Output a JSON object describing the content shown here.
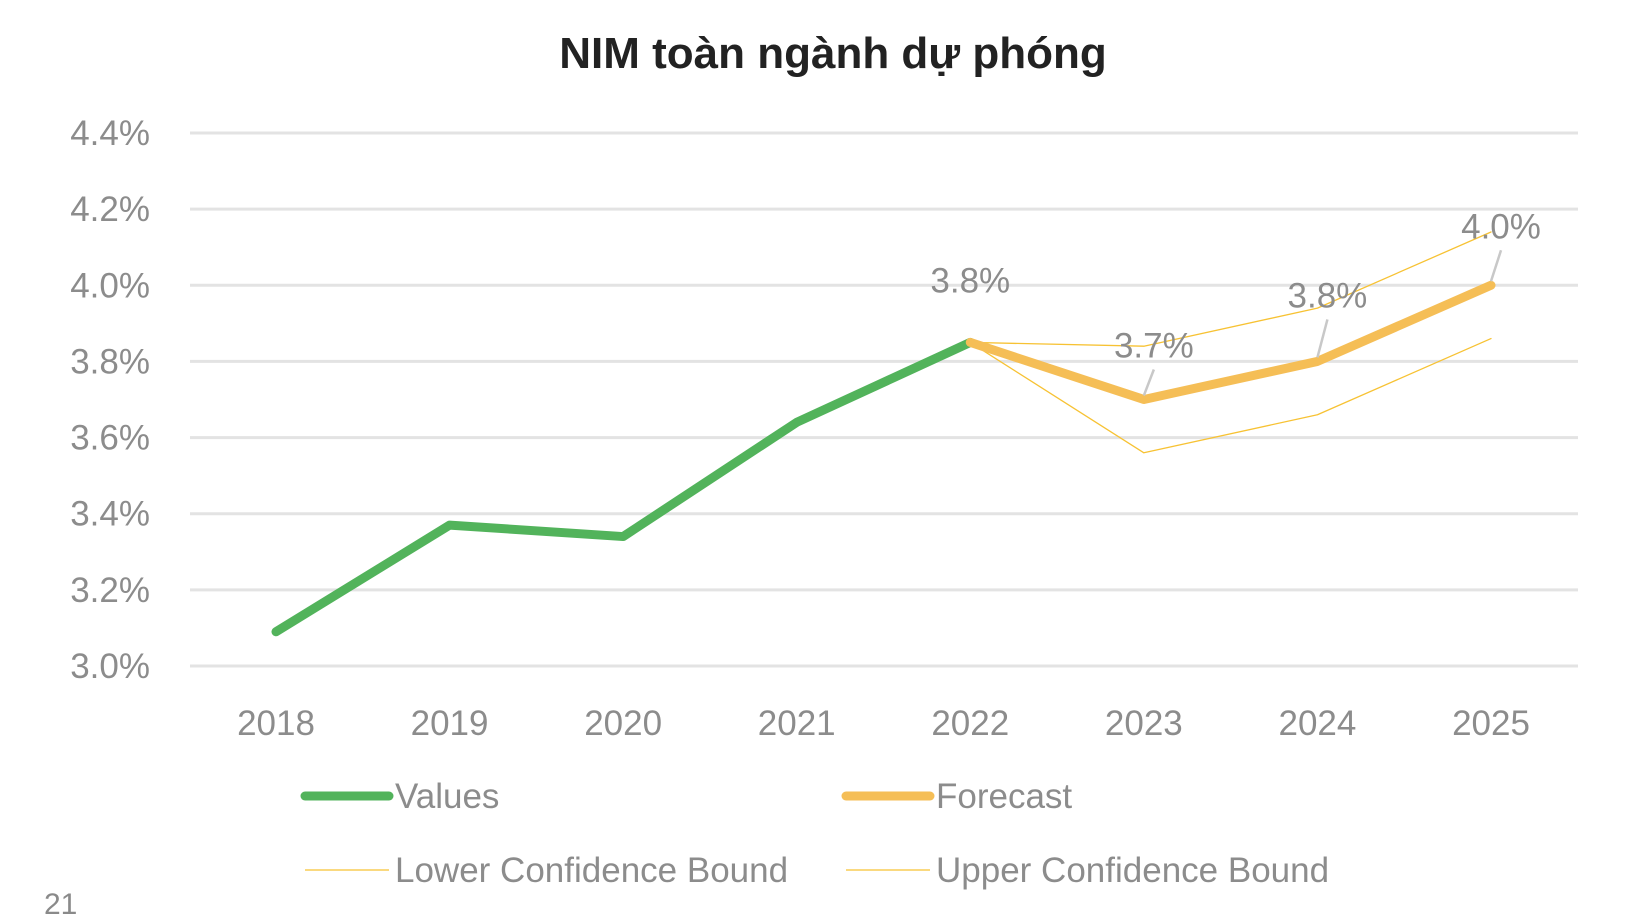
{
  "chart_data": {
    "type": "line",
    "title": "NIM toàn ngành dự phóng",
    "xlabel": "",
    "ylabel": "",
    "ylim": [
      3.0,
      4.4
    ],
    "yticks": [
      "3.0%",
      "3.2%",
      "3.4%",
      "3.6%",
      "3.8%",
      "4.0%",
      "4.2%",
      "4.4%"
    ],
    "ytick_values": [
      3.0,
      3.2,
      3.4,
      3.6,
      3.8,
      4.0,
      4.2,
      4.4
    ],
    "categories": [
      "2018",
      "2019",
      "2020",
      "2021",
      "2022",
      "2023",
      "2024",
      "2025"
    ],
    "grid": true,
    "legend_position": "bottom",
    "series": [
      {
        "name": "Values",
        "color": "#52b35b",
        "values": [
          3.09,
          3.37,
          3.34,
          3.64,
          3.85,
          null,
          null,
          null
        ]
      },
      {
        "name": "Forecast",
        "color": "#f5be56",
        "values": [
          null,
          null,
          null,
          null,
          3.85,
          3.7,
          3.8,
          4.0
        ]
      },
      {
        "name": "Lower Confidence Bound",
        "color": "#f7c233",
        "values": [
          null,
          null,
          null,
          null,
          3.85,
          3.56,
          3.66,
          3.86
        ]
      },
      {
        "name": "Upper Confidence Bound",
        "color": "#f7c233",
        "values": [
          null,
          null,
          null,
          null,
          3.85,
          3.84,
          3.94,
          4.14
        ]
      }
    ],
    "data_labels": [
      {
        "category": "2022",
        "text": "3.8%"
      },
      {
        "category": "2023",
        "text": "3.7%"
      },
      {
        "category": "2024",
        "text": "3.8%"
      },
      {
        "category": "2025",
        "text": "4.0%"
      }
    ]
  },
  "page_number": "21"
}
